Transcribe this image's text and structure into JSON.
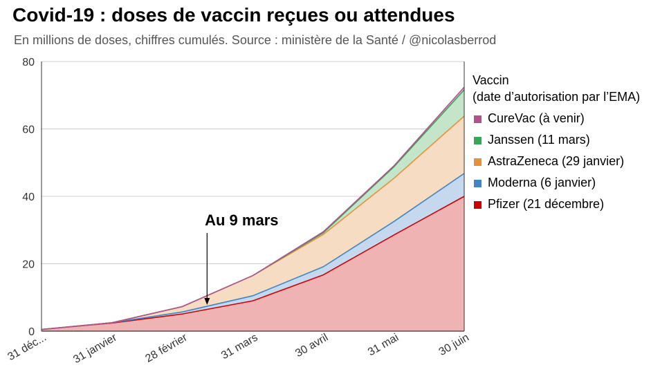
{
  "title": "Covid-19 : doses de vaccin reçues ou attendues",
  "subtitle": "En millions de doses, chiffres cumulés. Source : ministère de la Santé / @nicolasberrod",
  "legend": {
    "title_line1": "Vaccin",
    "title_line2": "(date d’autorisation par l’EMA)"
  },
  "chart_data": {
    "type": "area",
    "stacked": true,
    "categories": [
      "31 déc...",
      "31 janvier",
      "28 février",
      "31 mars",
      "30 avril",
      "31 mai",
      "30 juin"
    ],
    "ylim": [
      0,
      80
    ],
    "yticks": [
      0,
      20,
      40,
      60,
      80
    ],
    "grid": true,
    "legend_position": "right",
    "annotation": {
      "text": "Au 9 mars",
      "x": 2.35,
      "y": 8
    },
    "series": [
      {
        "name": "Pfizer (21 décembre)",
        "color": "#cc0000",
        "fill": "#f0b3b4",
        "values": [
          0.5,
          2.4,
          5.1,
          9.0,
          16.7,
          28.5,
          40.0
        ]
      },
      {
        "name": "Moderna (6 janvier)",
        "color": "#3d85c6",
        "fill": "#c6d8ee",
        "values": [
          0.0,
          0.1,
          0.6,
          1.5,
          2.4,
          4.0,
          6.8
        ]
      },
      {
        "name": "AstraZeneca (29 janvier)",
        "color": "#e69138",
        "fill": "#f6dcc2",
        "values": [
          0.0,
          0.0,
          1.6,
          6.0,
          9.6,
          12.8,
          17.0
        ]
      },
      {
        "name": "Janssen (11 mars)",
        "color": "#34a853",
        "fill": "#c4e5c9",
        "values": [
          0.0,
          0.0,
          0.0,
          0.0,
          0.5,
          3.4,
          7.8
        ]
      },
      {
        "name": "CureVac (à venir)",
        "color": "#b5508f",
        "fill": "#e6c3d8",
        "values": [
          0.0,
          0.0,
          0.0,
          0.0,
          0.3,
          0.3,
          0.8
        ]
      }
    ]
  }
}
